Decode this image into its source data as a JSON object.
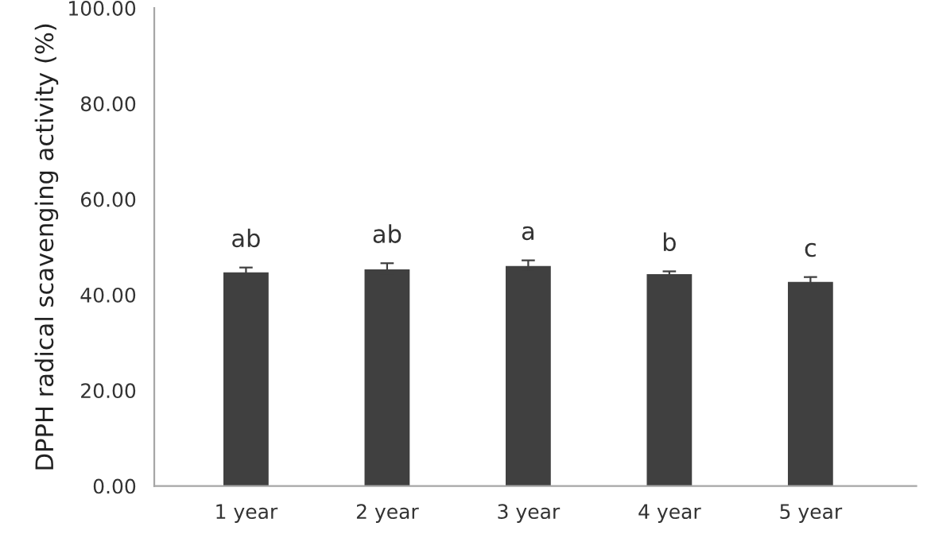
{
  "chart_data": {
    "type": "bar",
    "ylabel": "DPPH radical scavenging activity (%)",
    "categories": [
      "1 year",
      "2 year",
      "3 year",
      "4 year",
      "5 year"
    ],
    "values": [
      44.7,
      45.3,
      46.0,
      44.3,
      42.7
    ],
    "errors": [
      1.0,
      1.3,
      1.2,
      0.6,
      1.0
    ],
    "value_labels": [
      "ab",
      "ab",
      "a",
      "b",
      "c"
    ],
    "color": "#404040",
    "ylim": [
      0,
      100
    ],
    "yticks": [
      {
        "value": 0,
        "label": "0.00"
      },
      {
        "value": 20,
        "label": "20.00"
      },
      {
        "value": 40,
        "label": "40.00"
      },
      {
        "value": 60,
        "label": "60.00"
      },
      {
        "value": 80,
        "label": "80.00"
      },
      {
        "value": 100,
        "label": "100.00"
      }
    ],
    "grid": false,
    "legend": false
  }
}
